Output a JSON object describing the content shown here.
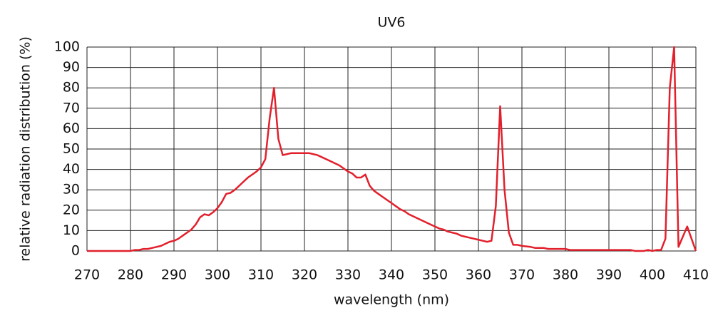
{
  "chart_data": {
    "type": "line",
    "title": "UV6",
    "x_label": "wavelength (nm)",
    "y_label": "relative radiation distribution (%)",
    "x": [
      270,
      280,
      281,
      282,
      283,
      284,
      285,
      286,
      287,
      288,
      289,
      290,
      291,
      292,
      293,
      294,
      295,
      296,
      297,
      298,
      299,
      300,
      301,
      302,
      303,
      304,
      305,
      306,
      307,
      308,
      309,
      310,
      311,
      312,
      313,
      314,
      315,
      316,
      317,
      318,
      319,
      320,
      321,
      322,
      323,
      324,
      325,
      326,
      327,
      328,
      329,
      330,
      331,
      332,
      333,
      334,
      335,
      336,
      337,
      338,
      339,
      340,
      341,
      342,
      343,
      344,
      345,
      346,
      347,
      348,
      349,
      350,
      351,
      352,
      353,
      354,
      355,
      356,
      357,
      358,
      359,
      360,
      361,
      362,
      363,
      364,
      365,
      366,
      367,
      368,
      369,
      370,
      372,
      373,
      375,
      376,
      380,
      381,
      395,
      396,
      398,
      399,
      400,
      401,
      402,
      403,
      404,
      405,
      406,
      408,
      410
    ],
    "values": [
      0,
      0,
      0.5,
      0.5,
      1,
      1,
      1.5,
      2,
      2.5,
      3.5,
      4.5,
      5,
      6,
      7.5,
      9,
      10.5,
      13,
      16.5,
      18,
      17.5,
      19,
      21,
      24,
      28,
      28.5,
      30,
      32,
      34,
      36,
      37.5,
      39,
      41,
      45,
      65,
      80,
      55,
      47,
      47.5,
      48,
      48,
      48,
      48,
      48,
      47.5,
      47,
      46,
      45,
      44,
      43,
      42,
      40.5,
      39,
      38,
      36,
      36,
      37.5,
      32,
      29.5,
      28,
      26.5,
      25,
      23.5,
      22,
      20.5,
      19.5,
      18,
      17,
      16,
      15,
      14,
      13,
      12,
      11,
      10.5,
      9.5,
      9,
      8.5,
      7.5,
      7,
      6.5,
      6,
      5.5,
      5,
      4.5,
      5,
      22,
      71,
      30,
      9,
      3,
      3,
      2.5,
      2,
      1.5,
      1.5,
      1,
      1,
      0.5,
      0.5,
      0,
      0,
      0.5,
      0,
      0.5,
      0.5,
      6,
      80,
      100,
      2,
      12,
      0
    ],
    "color": "#e2202c",
    "xlim": [
      270,
      410
    ],
    "xticks": [
      270,
      280,
      290,
      300,
      310,
      320,
      330,
      340,
      350,
      360,
      370,
      380,
      390,
      400,
      410
    ],
    "ylim": [
      0,
      100
    ],
    "yticks": [
      0,
      10,
      20,
      30,
      40,
      50,
      60,
      70,
      80,
      90,
      100
    ],
    "grid": true
  }
}
